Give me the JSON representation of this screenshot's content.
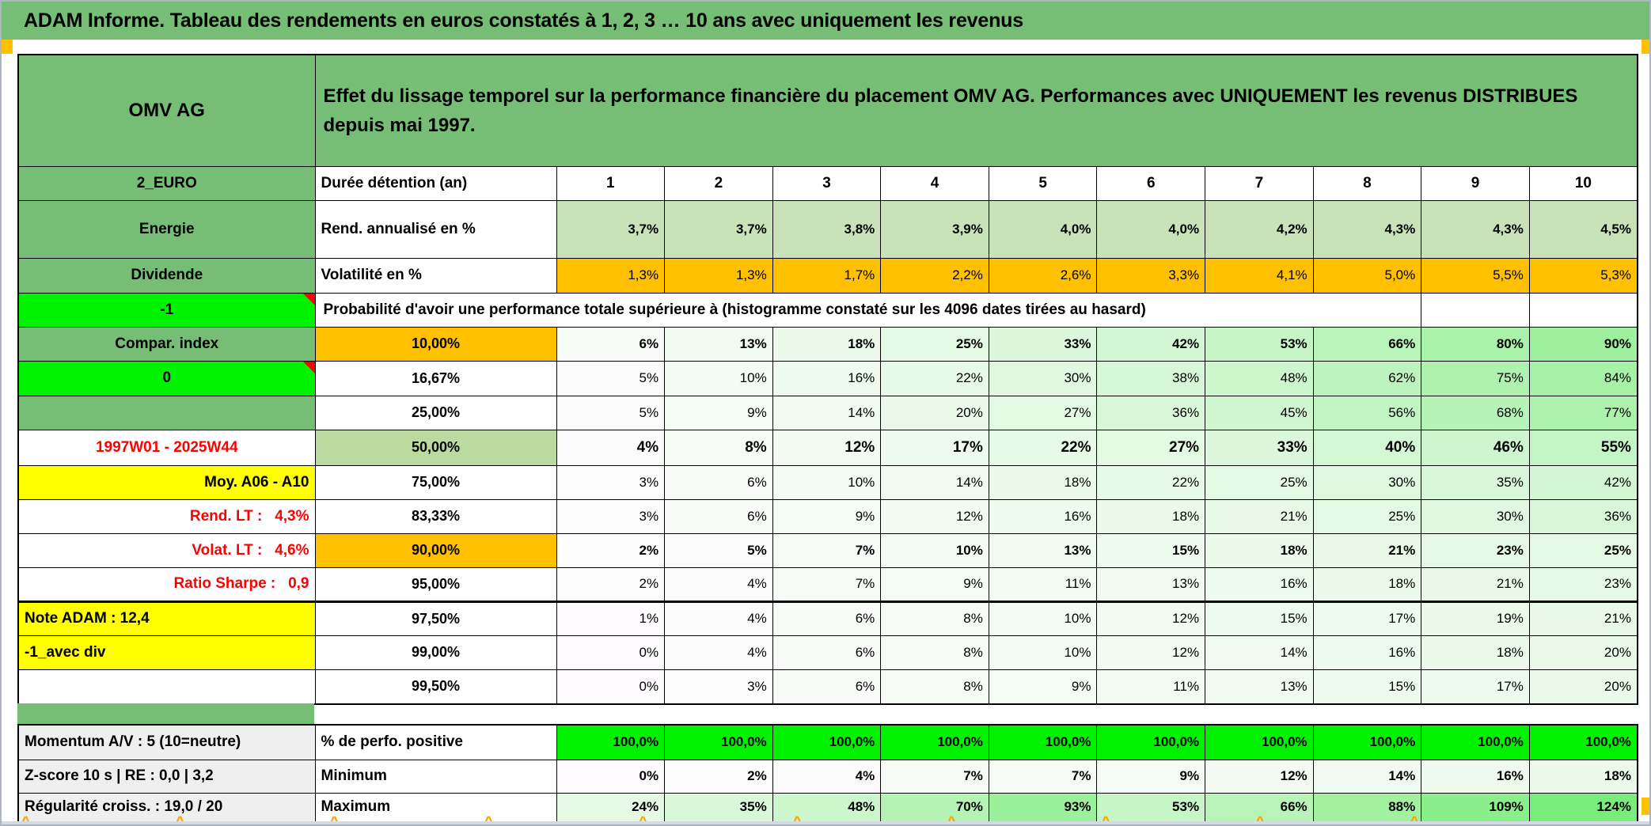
{
  "banner": {
    "title": "ADAM Informe. Tableau des rendements en euros constatés à 1, 2, 3 … 10 ans avec uniquement les revenus"
  },
  "header": {
    "ticker": "OMV AG",
    "description": "Effet du lissage temporel sur la performance financière du placement OMV AG. Performances avec UNIQUEMENT les revenus DISTRIBUES depuis mai 1997."
  },
  "table": {
    "corner_code": "2_EURO",
    "duration_label": "Durée détention (an)",
    "years": [
      "1",
      "2",
      "3",
      "4",
      "5",
      "6",
      "7",
      "8",
      "9",
      "10"
    ],
    "sector_label": "Energie",
    "rend_label": "Rend. annualisé en %",
    "rend_values": [
      "3,7%",
      "3,7%",
      "3,8%",
      "3,9%",
      "4,0%",
      "4,0%",
      "4,2%",
      "4,3%",
      "4,3%",
      "4,5%"
    ],
    "type_label": "Dividende",
    "volat_label": "Volatilité en %",
    "volat_values": [
      "1,3%",
      "1,3%",
      "1,7%",
      "2,2%",
      "2,6%",
      "3,3%",
      "4,1%",
      "5,0%",
      "5,5%",
      "5,3%"
    ],
    "probability": {
      "note_label": "-1",
      "title": "Probabilité d'avoir une performance totale supérieure à (histogramme constaté sur les 4096 dates tirées au hasard)",
      "rows": [
        {
          "label": "Compar. index",
          "threshold": "10,00%",
          "values": [
            "6%",
            "13%",
            "18%",
            "25%",
            "33%",
            "42%",
            "53%",
            "66%",
            "80%",
            "90%"
          ]
        },
        {
          "label": "0",
          "threshold": "16,67%",
          "values": [
            "5%",
            "10%",
            "16%",
            "22%",
            "30%",
            "38%",
            "48%",
            "62%",
            "75%",
            "84%"
          ]
        },
        {
          "label": "",
          "threshold": "25,00%",
          "values": [
            "5%",
            "9%",
            "14%",
            "20%",
            "27%",
            "36%",
            "45%",
            "56%",
            "68%",
            "77%"
          ]
        },
        {
          "label": "1997W01 - 2025W44",
          "threshold": "50,00%",
          "values": [
            "4%",
            "8%",
            "12%",
            "17%",
            "22%",
            "27%",
            "33%",
            "40%",
            "46%",
            "55%"
          ]
        },
        {
          "label": "Moy. A06 - A10",
          "threshold": "75,00%",
          "values": [
            "3%",
            "6%",
            "10%",
            "14%",
            "18%",
            "22%",
            "25%",
            "30%",
            "35%",
            "42%"
          ]
        },
        {
          "label": "Rend. LT :   4,3%",
          "threshold": "83,33%",
          "values": [
            "3%",
            "6%",
            "9%",
            "12%",
            "16%",
            "18%",
            "21%",
            "25%",
            "30%",
            "36%"
          ]
        },
        {
          "label": "Volat. LT :   4,6%",
          "threshold": "90,00%",
          "values": [
            "2%",
            "5%",
            "7%",
            "10%",
            "13%",
            "15%",
            "18%",
            "21%",
            "23%",
            "25%"
          ]
        },
        {
          "label": "Ratio Sharpe :   0,9",
          "threshold": "95,00%",
          "values": [
            "2%",
            "4%",
            "7%",
            "9%",
            "11%",
            "13%",
            "16%",
            "18%",
            "21%",
            "23%"
          ]
        },
        {
          "label": "Note ADAM : 12,4",
          "threshold": "97,50%",
          "values": [
            "1%",
            "4%",
            "6%",
            "8%",
            "10%",
            "12%",
            "15%",
            "17%",
            "19%",
            "21%"
          ]
        },
        {
          "label": "-1_avec div",
          "threshold": "99,00%",
          "values": [
            "0%",
            "4%",
            "6%",
            "8%",
            "10%",
            "12%",
            "14%",
            "16%",
            "18%",
            "20%"
          ]
        },
        {
          "label": "",
          "threshold": "99,50%",
          "values": [
            "0%",
            "3%",
            "6%",
            "8%",
            "9%",
            "11%",
            "13%",
            "15%",
            "17%",
            "20%"
          ]
        }
      ]
    },
    "stats": {
      "rows": [
        {
          "label": "Momentum A/V : 5 (10=neutre)",
          "metric": "% de perfo. positive",
          "values": [
            "100,0%",
            "100,0%",
            "100,0%",
            "100,0%",
            "100,0%",
            "100,0%",
            "100,0%",
            "100,0%",
            "100,0%",
            "100,0%"
          ]
        },
        {
          "label": "Z-score 10 s | RE : 0,0 | 3,2",
          "metric": "Minimum",
          "values": [
            "0%",
            "2%",
            "4%",
            "7%",
            "7%",
            "9%",
            "12%",
            "14%",
            "16%",
            "18%"
          ]
        },
        {
          "label": "Régularité croiss. : 19,0 / 20",
          "metric": "Maximum",
          "values": [
            "24%",
            "35%",
            "48%",
            "70%",
            "93%",
            "53%",
            "66%",
            "88%",
            "109%",
            "124%"
          ]
        }
      ]
    }
  },
  "colors": {
    "banner_green": "#76be76",
    "cell_light_green": "#c9e2b8",
    "median_green": "#bbda9f",
    "orange": "#ffc000",
    "bright_green": "#00f200",
    "yellow": "#ffff00",
    "red_text": "#ff0000",
    "gray_label": "#efefef",
    "scale_max_green": "#7af07a"
  }
}
